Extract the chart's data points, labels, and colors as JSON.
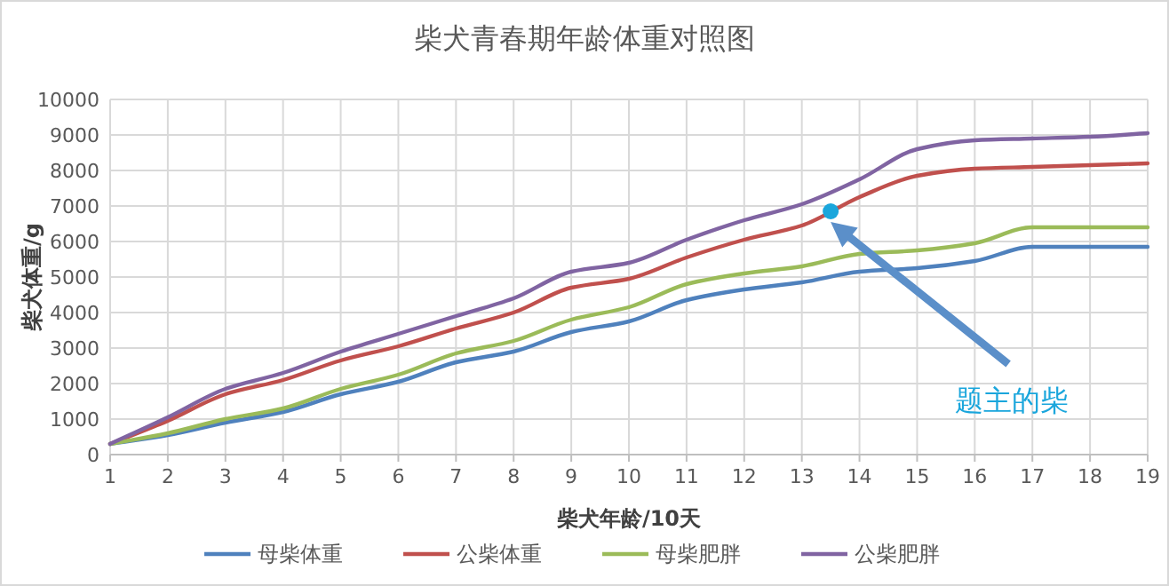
{
  "chart_data": {
    "type": "line",
    "title": "柴犬青春期年龄体重对照图",
    "xlabel": "柴犬年龄/10天",
    "ylabel": "柴犬体重/g",
    "x": [
      1,
      2,
      3,
      4,
      5,
      6,
      7,
      8,
      9,
      10,
      11,
      12,
      13,
      14,
      15,
      16,
      17,
      18,
      19
    ],
    "xlim": [
      1,
      19
    ],
    "xticks": [
      1,
      2,
      3,
      4,
      5,
      6,
      7,
      8,
      9,
      10,
      11,
      12,
      13,
      14,
      15,
      16,
      17,
      18,
      19
    ],
    "ylim": [
      0,
      10000
    ],
    "yticks": [
      0,
      1000,
      2000,
      3000,
      4000,
      5000,
      6000,
      7000,
      8000,
      9000,
      10000
    ],
    "grid": true,
    "legend": "bottom",
    "line_style": "solid",
    "series": [
      {
        "name": "母柴体重",
        "color": "#4f81bd",
        "values": [
          300,
          550,
          900,
          1200,
          1700,
          2050,
          2600,
          2900,
          3450,
          3750,
          4350,
          4650,
          4850,
          5150,
          5250,
          5450,
          5850,
          5850,
          5850
        ]
      },
      {
        "name": "公柴体重",
        "color": "#c0504d",
        "values": [
          300,
          950,
          1700,
          2100,
          2650,
          3050,
          3550,
          4000,
          4700,
          4950,
          5550,
          6050,
          6450,
          7250,
          7850,
          8050,
          8100,
          8150,
          8200
        ]
      },
      {
        "name": "母柴肥胖",
        "color": "#9bbb59",
        "values": [
          300,
          600,
          1000,
          1300,
          1850,
          2250,
          2850,
          3200,
          3800,
          4150,
          4800,
          5100,
          5300,
          5650,
          5750,
          5950,
          6400,
          6400,
          6400
        ]
      },
      {
        "name": "公柴肥胖",
        "color": "#8064a2",
        "values": [
          300,
          1050,
          1850,
          2300,
          2900,
          3400,
          3900,
          4400,
          5150,
          5400,
          6050,
          6600,
          7050,
          7750,
          8600,
          8850,
          8900,
          8950,
          9050
        ]
      },
      {
        "type": "scatter",
        "color": "#1aa6dc",
        "x": [
          13.5
        ],
        "values": [
          6850
        ]
      }
    ],
    "annotations": [
      "题主的柴"
    ]
  }
}
